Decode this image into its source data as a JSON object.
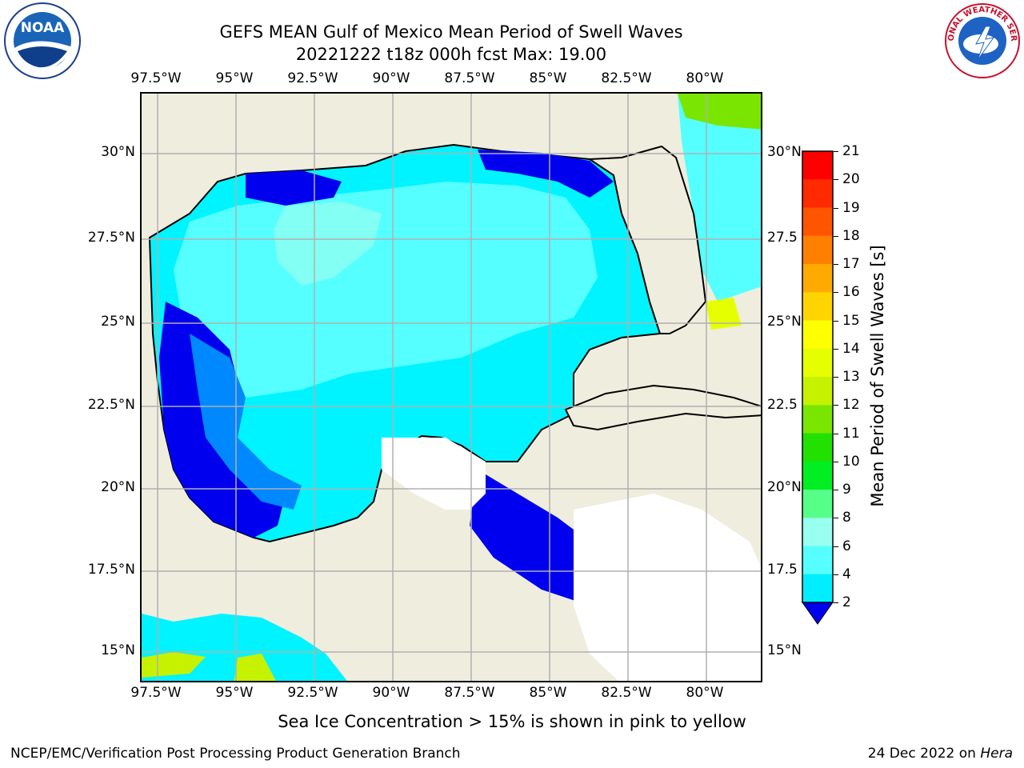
{
  "title": {
    "line1": "GEFS MEAN Gulf of Mexico Mean Period of Swell Waves",
    "line2": "20221222 t18z 000h fcst   Max: 19.00"
  },
  "logos": {
    "left": {
      "name": "noaa-logo",
      "text": "NOAA"
    },
    "right": {
      "name": "nws-logo",
      "text": "NATIONAL WEATHER SERVICE"
    }
  },
  "axes": {
    "lon_labels": [
      "97.5°W",
      "95°W",
      "92.5°W",
      "90°W",
      "87.5°W",
      "85°W",
      "82.5°W",
      "80°W"
    ],
    "lat_labels_left": [
      "30°N",
      "27.5°N",
      "25°N",
      "22.5°N",
      "20°N",
      "17.5°N",
      "15°N"
    ],
    "lat_labels_right": [
      "30°N",
      "27.5",
      "25°N",
      "22.5",
      "20°N",
      "17.5",
      "15°N"
    ]
  },
  "colorbar": {
    "label": "Mean Period of Swell Waves [s]",
    "ticks": [
      "21",
      "20",
      "19",
      "18",
      "17",
      "16",
      "15",
      "14",
      "13",
      "12",
      "11",
      "10",
      "9",
      "8",
      "6",
      "4",
      "2"
    ],
    "colors": [
      "#ff0000",
      "#ff2a00",
      "#ff5500",
      "#ff8000",
      "#ffaa00",
      "#ffd400",
      "#ffff00",
      "#e5ff00",
      "#c6f200",
      "#7ae600",
      "#22e000",
      "#00ee22",
      "#55ff88",
      "#99ffee",
      "#55ffff",
      "#00eeff",
      "#0088ff"
    ],
    "extend_color": "#0000ee"
  },
  "caption": "Sea Ice Concentration > 15% is shown in pink to yellow",
  "footer": {
    "left": "NCEP/EMC/Verification Post Processing Product Generation Branch",
    "right_prefix": "24 Dec 2022 on ",
    "right_host": "Hera"
  }
}
